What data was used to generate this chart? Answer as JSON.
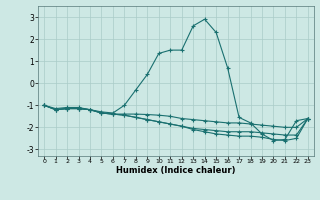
{
  "xlabel": "Humidex (Indice chaleur)",
  "ylabel": "",
  "xlim": [
    -0.5,
    23.5
  ],
  "ylim": [
    -3.3,
    3.5
  ],
  "xticks": [
    0,
    1,
    2,
    3,
    4,
    5,
    6,
    7,
    8,
    9,
    10,
    11,
    12,
    13,
    14,
    15,
    16,
    17,
    18,
    19,
    20,
    21,
    22,
    23
  ],
  "yticks": [
    -3,
    -2,
    -1,
    0,
    1,
    2,
    3
  ],
  "bg_color": "#cde8e4",
  "grid_color": "#aaccc8",
  "line_color": "#1a7070",
  "line1_x": [
    0,
    1,
    2,
    3,
    4,
    5,
    6,
    7,
    8,
    9,
    10,
    11,
    12,
    13,
    14,
    15,
    16,
    17,
    18,
    19,
    20,
    21,
    22,
    23
  ],
  "line1_y": [
    -1.0,
    -1.15,
    -1.1,
    -1.1,
    -1.2,
    -1.3,
    -1.35,
    -1.0,
    -0.3,
    0.4,
    1.35,
    1.5,
    1.5,
    2.6,
    2.9,
    2.3,
    0.7,
    -1.55,
    -1.8,
    -2.3,
    -2.6,
    -2.55,
    -1.7,
    -1.6
  ],
  "line2_x": [
    0,
    1,
    2,
    3,
    4,
    5,
    6,
    7,
    8,
    9,
    10,
    11,
    12,
    13,
    14,
    15,
    16,
    17,
    18,
    19,
    20,
    21,
    22,
    23
  ],
  "line2_y": [
    -1.0,
    -1.2,
    -1.15,
    -1.15,
    -1.2,
    -1.35,
    -1.4,
    -1.4,
    -1.4,
    -1.42,
    -1.45,
    -1.5,
    -1.6,
    -1.65,
    -1.7,
    -1.75,
    -1.8,
    -1.8,
    -1.85,
    -1.9,
    -1.95,
    -2.0,
    -2.0,
    -1.6
  ],
  "line3_x": [
    0,
    1,
    2,
    3,
    4,
    5,
    6,
    7,
    8,
    9,
    10,
    11,
    12,
    13,
    14,
    15,
    16,
    17,
    18,
    19,
    20,
    21,
    22,
    23
  ],
  "line3_y": [
    -1.0,
    -1.2,
    -1.15,
    -1.15,
    -1.2,
    -1.35,
    -1.4,
    -1.45,
    -1.55,
    -1.65,
    -1.75,
    -1.85,
    -1.95,
    -2.05,
    -2.1,
    -2.15,
    -2.2,
    -2.2,
    -2.2,
    -2.25,
    -2.3,
    -2.35,
    -2.35,
    -1.6
  ],
  "line4_x": [
    0,
    1,
    2,
    3,
    4,
    5,
    6,
    7,
    8,
    9,
    10,
    11,
    12,
    13,
    14,
    15,
    16,
    17,
    18,
    19,
    20,
    21,
    22,
    23
  ],
  "line4_y": [
    -1.0,
    -1.2,
    -1.15,
    -1.15,
    -1.2,
    -1.35,
    -1.4,
    -1.45,
    -1.55,
    -1.65,
    -1.75,
    -1.85,
    -1.95,
    -2.1,
    -2.2,
    -2.3,
    -2.35,
    -2.4,
    -2.4,
    -2.45,
    -2.55,
    -2.6,
    -2.5,
    -1.6
  ]
}
